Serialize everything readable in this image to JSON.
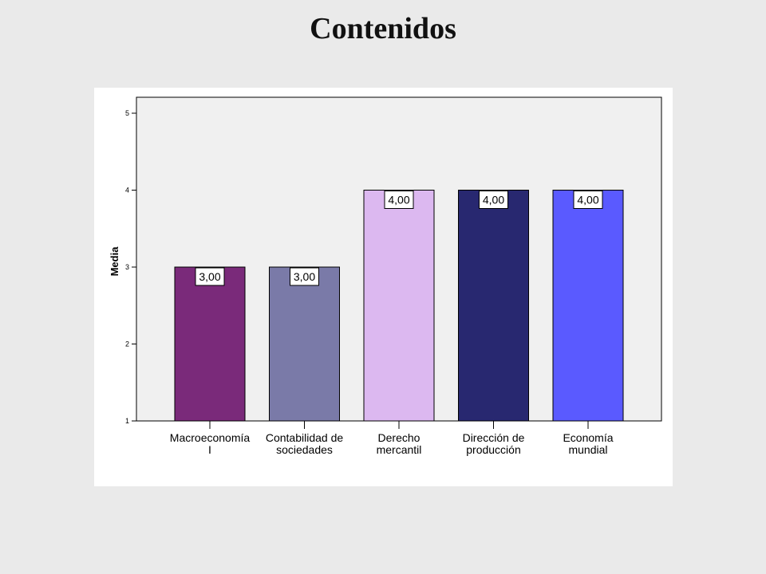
{
  "page": {
    "title": "Contenidos"
  },
  "chart_data": {
    "type": "bar",
    "ylabel": "Media",
    "xlabel": "",
    "ylim": [
      1,
      5
    ],
    "yticks": [
      1,
      2,
      3,
      4,
      5
    ],
    "grid": false,
    "categories": [
      [
        "Macroeconomía",
        "I"
      ],
      [
        "Contabilidad de",
        "sociedades"
      ],
      [
        "Derecho",
        "mercantil"
      ],
      [
        "Dirección de",
        "producción"
      ],
      [
        "Economía",
        "mundial"
      ]
    ],
    "values": [
      3.0,
      3.0,
      4.0,
      4.0,
      4.0
    ],
    "value_labels": [
      "3,00",
      "3,00",
      "4,00",
      "4,00",
      "4,00"
    ],
    "colors": [
      "#7a2a7a",
      "#7a7aa8",
      "#dcb8f0",
      "#282870",
      "#5a5aff"
    ],
    "plot_background": "#f0f0f0"
  }
}
